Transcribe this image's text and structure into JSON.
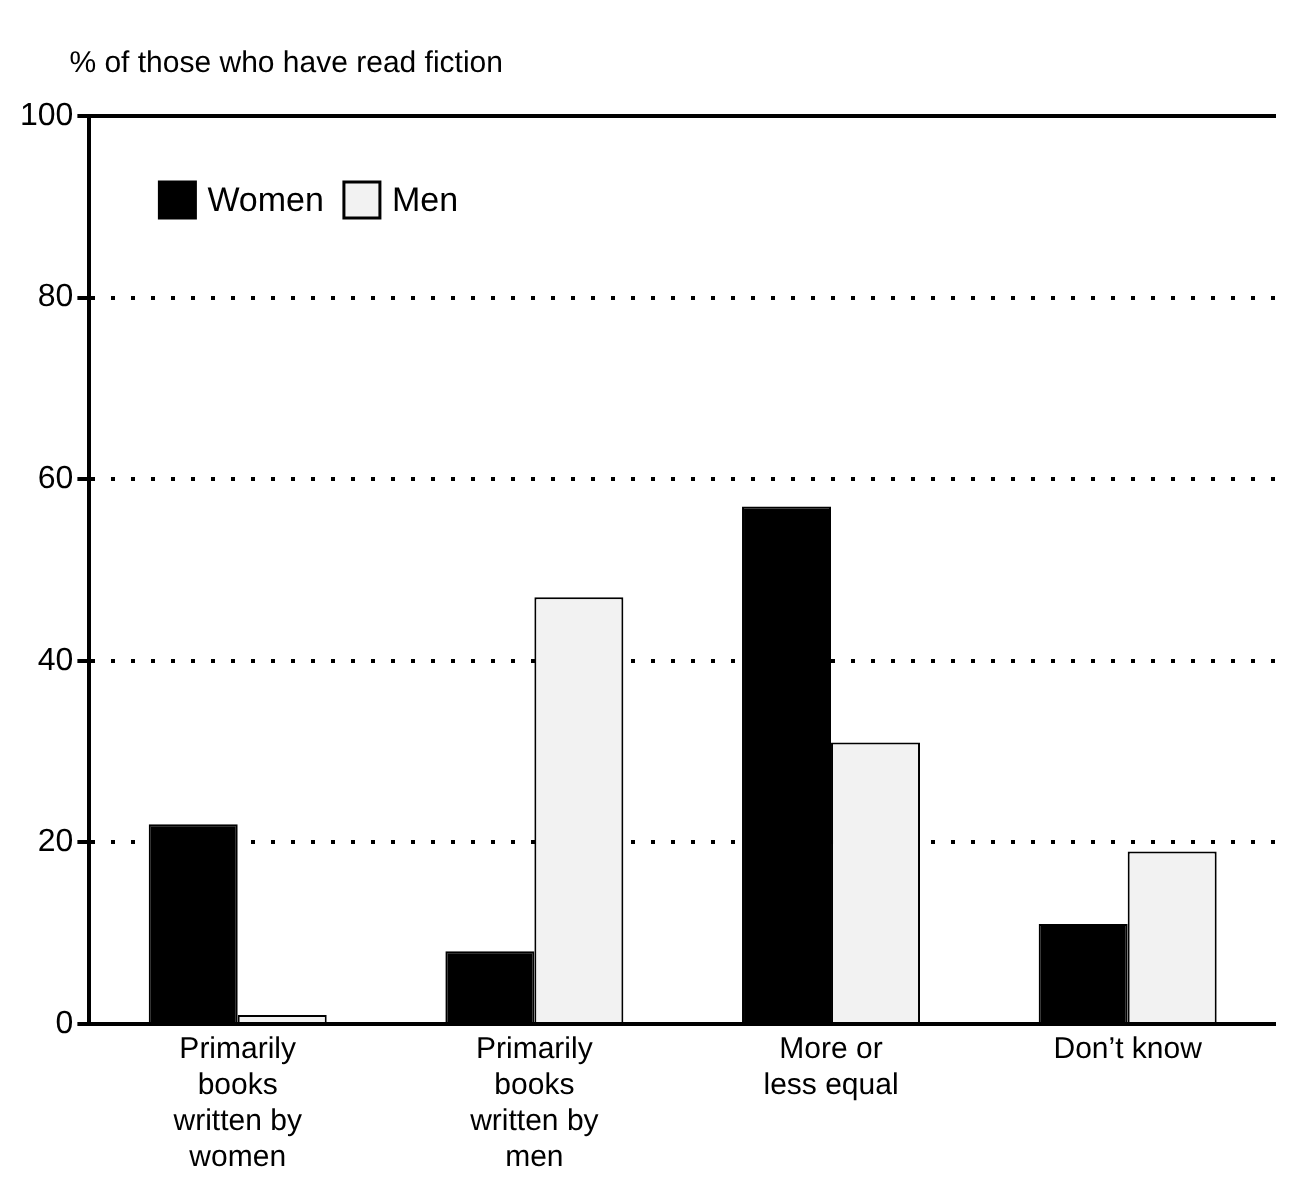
{
  "chart_data": {
    "type": "bar",
    "ylabel": "% of those who have read fiction",
    "categories": [
      "Primarily books written by women",
      "Primarily books written by men",
      "More or less equal",
      "Don’t know"
    ],
    "series": [
      {
        "name": "Women",
        "color": "#000000",
        "values": [
          22,
          8,
          57,
          11
        ]
      },
      {
        "name": "Men",
        "color": "#f2f2f2",
        "values": [
          1,
          47,
          31,
          19
        ]
      }
    ],
    "ylim": [
      0,
      100
    ],
    "yticks": [
      0,
      20,
      40,
      60,
      80,
      100
    ],
    "grid": "y",
    "legend": "top left"
  }
}
